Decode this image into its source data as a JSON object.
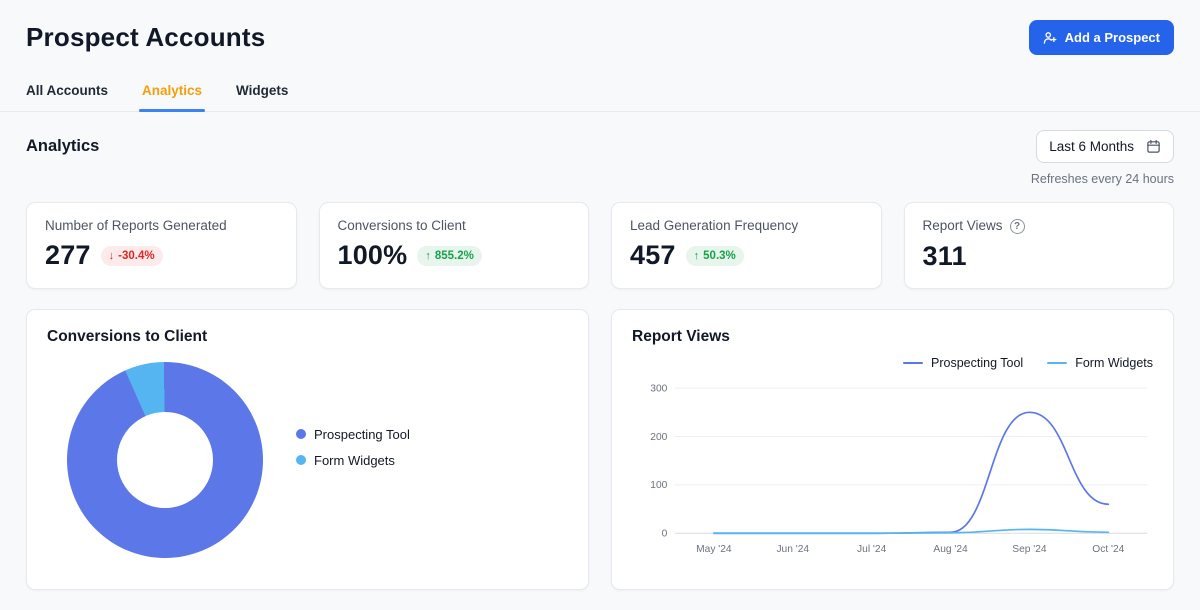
{
  "colors": {
    "primary": "#2563eb",
    "tab_active_text": "#f59e0b",
    "tab_active_underline": "#3b82f6",
    "negative_text": "#dc2626",
    "negative_bg": "#fdeaea",
    "positive_text": "#16a34a",
    "positive_bg": "#e8f5ec"
  },
  "header": {
    "title": "Prospect Accounts",
    "add_button_label": "Add a Prospect"
  },
  "tabs": [
    {
      "label": "All Accounts"
    },
    {
      "label": "Analytics"
    },
    {
      "label": "Widgets"
    }
  ],
  "toolbar": {
    "heading": "Analytics",
    "date_range": "Last 6 Months",
    "refresh_note": "Refreshes every 24 hours"
  },
  "stats": [
    {
      "label": "Number of Reports Generated",
      "value": "277",
      "arrow": "↓",
      "delta": "-30.4%"
    },
    {
      "label": "Conversions to Client",
      "value": "100%",
      "arrow": "↑",
      "delta": "855.2%"
    },
    {
      "label": "Lead Generation Frequency",
      "value": "457",
      "arrow": "↑",
      "delta": "50.3%"
    },
    {
      "label": "Report Views",
      "value": "311",
      "help_icon": "?"
    }
  ],
  "chart_data": [
    {
      "type": "pie",
      "donut": true,
      "title": "Conversions to Client",
      "legend_position": "right",
      "start_angle": -24,
      "slices": [
        {
          "label": "Prospecting Tool",
          "percent": 93.5,
          "color": "#5b77e8"
        },
        {
          "label": "Form Widgets",
          "percent": 6.5,
          "color": "#54b5f0"
        }
      ]
    },
    {
      "type": "line",
      "title": "Report Views",
      "legend_position": "top-right",
      "grid": true,
      "x": [
        "May '24",
        "Jun '24",
        "Jul '24",
        "Aug '24",
        "Sep '24",
        "Oct '24"
      ],
      "ylim": [
        0,
        300
      ],
      "yticks": [
        0,
        100,
        200,
        300
      ],
      "series": [
        {
          "name": "Prospecting Tool",
          "color": "#5b77e8",
          "values": [
            0,
            0,
            0,
            2,
            250,
            60
          ]
        },
        {
          "name": "Form Widgets",
          "color": "#54b5f0",
          "values": [
            0,
            0,
            0,
            1,
            8,
            2
          ]
        }
      ]
    }
  ]
}
